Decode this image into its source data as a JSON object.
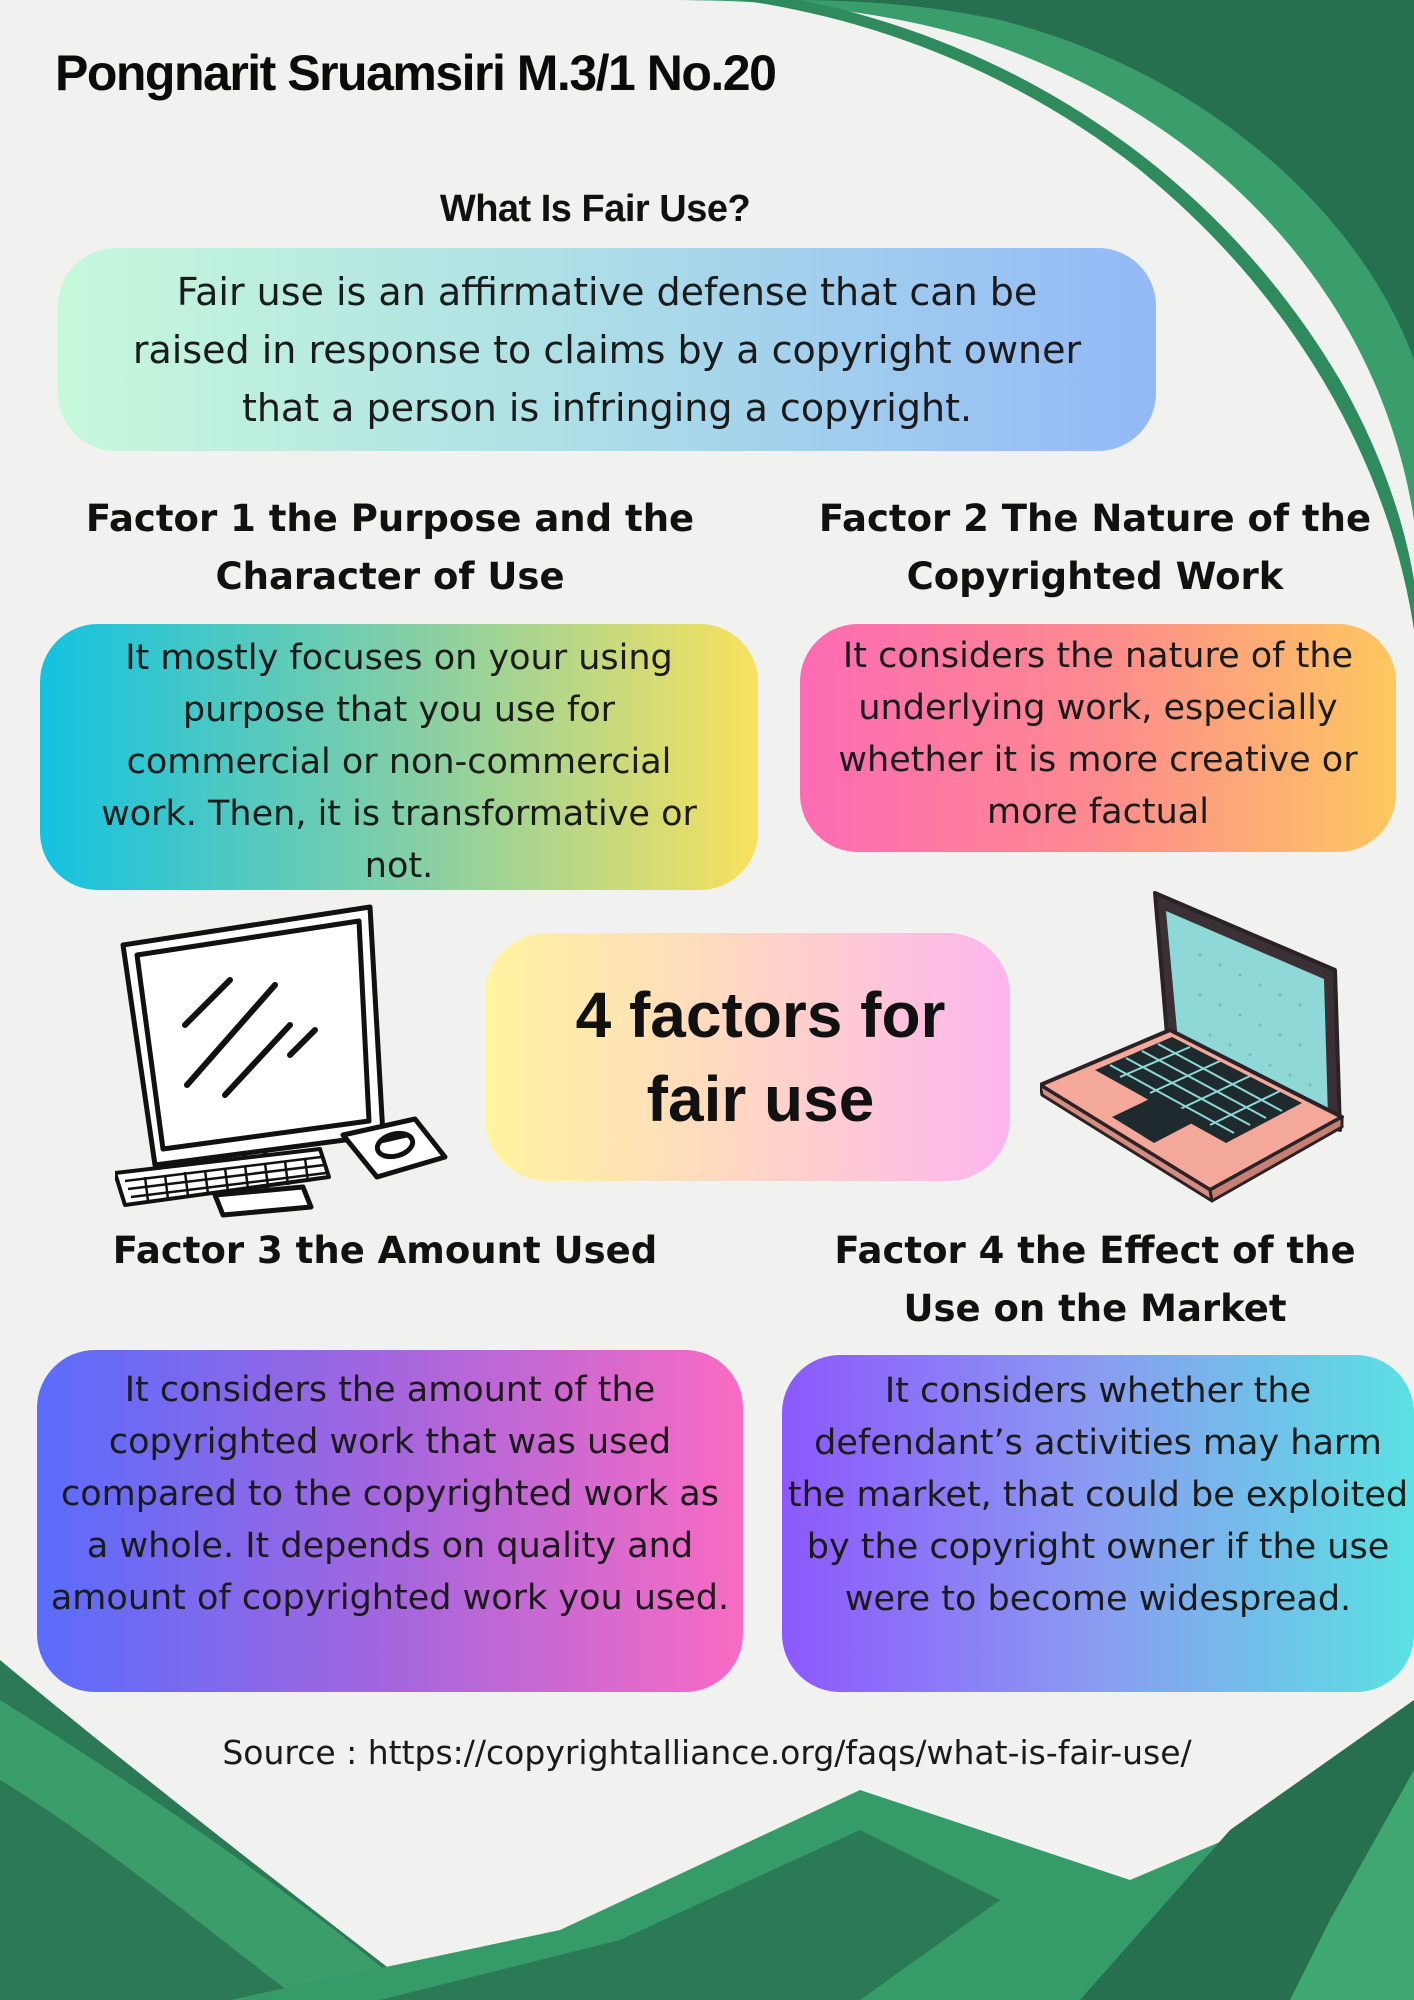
{
  "header": {
    "author": "Pongnarit Sruamsiri M.3/1 No.20"
  },
  "intro": {
    "title": "What Is Fair Use?",
    "text": "Fair use is an affirmative defense that can be raised in response to claims by a copyright owner that a person is infringing a copyright."
  },
  "center": {
    "title": "4 factors for fair use"
  },
  "factors": [
    {
      "title": "Factor 1 the Purpose and the Character of Use",
      "text": "It mostly focuses on your using purpose that you use for commercial or non-commercial work. Then, it is transformative or not."
    },
    {
      "title": "Factor 2 The Nature of the Copyrighted Work",
      "text": "It considers the nature of the underlying work, especially whether it is more creative or more factual"
    },
    {
      "title": "Factor 3 the Amount Used",
      "text": "It considers the amount of the copyrighted work that was used compared to the copyrighted work as a whole. It depends on quality and amount of copyrighted work you used."
    },
    {
      "title": "Factor 4 the Effect of the Use on the Market",
      "text": "It considers whether the defendant’s activities may harm the market,  that could be exploited by the copyright owner if the use were to become widespread."
    }
  ],
  "footer": {
    "source": "Source : https://copyrightalliance.org/faqs/what-is-fair-use/"
  },
  "colors": {
    "green_dark": "#276e4f",
    "green_mid": "#319667",
    "green_light": "#3fa872",
    "background": "#f1f1f0"
  },
  "illustrations": [
    "desktop-computer-icon",
    "laptop-icon"
  ]
}
